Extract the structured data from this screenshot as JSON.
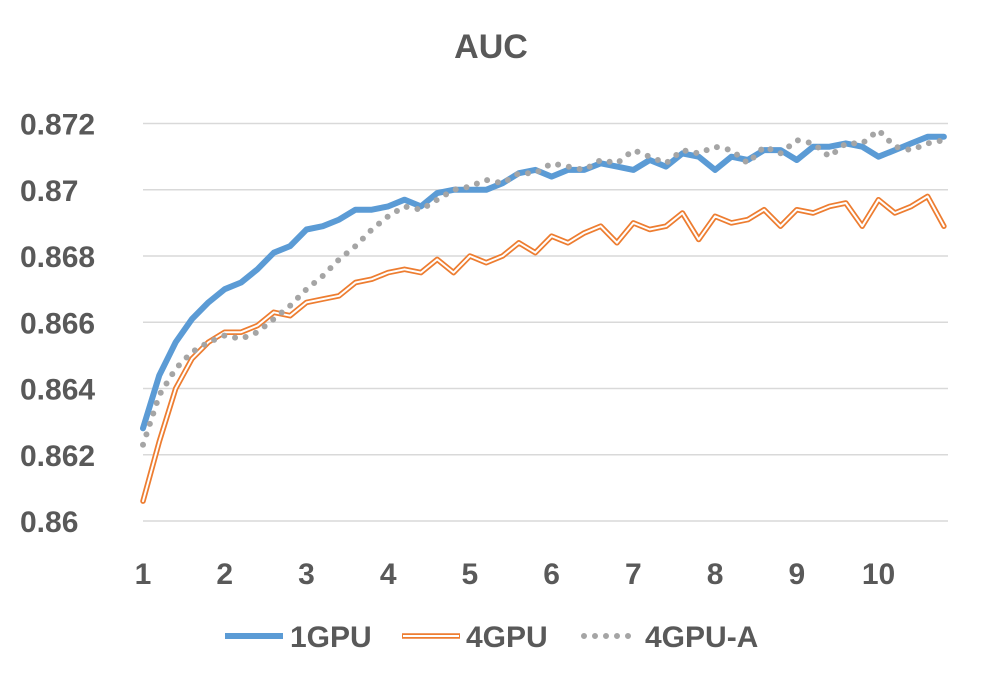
{
  "chart_data": {
    "type": "line",
    "title": "AUC",
    "xlabel": "",
    "ylabel": "",
    "x_ticks": [
      "1",
      "2",
      "3",
      "4",
      "5",
      "6",
      "7",
      "8",
      "9",
      "10"
    ],
    "x_range": [
      1,
      10.85
    ],
    "y_ticks": [
      "0.86",
      "0.862",
      "0.864",
      "0.866",
      "0.868",
      "0.87",
      "0.872"
    ],
    "ylim": [
      0.86,
      0.8725
    ],
    "grid": "horizontal",
    "legend_position": "bottom",
    "x": [
      1.0,
      1.2,
      1.4,
      1.6,
      1.8,
      2.0,
      2.2,
      2.4,
      2.6,
      2.8,
      3.0,
      3.2,
      3.4,
      3.6,
      3.8,
      4.0,
      4.2,
      4.4,
      4.6,
      4.8,
      5.0,
      5.2,
      5.4,
      5.6,
      5.8,
      6.0,
      6.2,
      6.4,
      6.6,
      6.8,
      7.0,
      7.2,
      7.4,
      7.6,
      7.8,
      8.0,
      8.2,
      8.4,
      8.6,
      8.8,
      9.0,
      9.2,
      9.4,
      9.6,
      9.8,
      10.0,
      10.2,
      10.4,
      10.6,
      10.8
    ],
    "series": [
      {
        "name": "1GPU",
        "color": "#5b9bd5",
        "style": "thick-solid",
        "values": [
          0.8628,
          0.8644,
          0.8654,
          0.8661,
          0.8666,
          0.867,
          0.8672,
          0.8676,
          0.8681,
          0.8683,
          0.8688,
          0.8689,
          0.8691,
          0.8694,
          0.8694,
          0.8695,
          0.8697,
          0.8695,
          0.8699,
          0.87,
          0.87,
          0.87,
          0.8702,
          0.8705,
          0.8706,
          0.8704,
          0.8706,
          0.8706,
          0.8708,
          0.8707,
          0.8706,
          0.8709,
          0.8707,
          0.8711,
          0.871,
          0.8706,
          0.871,
          0.8709,
          0.8712,
          0.8712,
          0.8709,
          0.8713,
          0.8713,
          0.8714,
          0.8713,
          0.871,
          0.8712,
          0.8714,
          0.8716,
          0.8716
        ]
      },
      {
        "name": "4GPU",
        "color": "#ed7d31",
        "style": "double-outline",
        "values": [
          0.8606,
          0.8624,
          0.864,
          0.8649,
          0.8654,
          0.8657,
          0.8657,
          0.8659,
          0.8663,
          0.8662,
          0.8666,
          0.8667,
          0.8668,
          0.8672,
          0.8673,
          0.8675,
          0.8676,
          0.8675,
          0.8679,
          0.8675,
          0.868,
          0.8678,
          0.868,
          0.8684,
          0.8681,
          0.8686,
          0.8684,
          0.8687,
          0.8689,
          0.8684,
          0.869,
          0.8688,
          0.8689,
          0.8693,
          0.8685,
          0.8692,
          0.869,
          0.8691,
          0.8694,
          0.8689,
          0.8694,
          0.8693,
          0.8695,
          0.8696,
          0.8689,
          0.8697,
          0.8693,
          0.8695,
          0.8698,
          0.8689
        ]
      },
      {
        "name": "4GPU-A",
        "color": "#a5a5a5",
        "style": "dotted",
        "values": [
          0.8623,
          0.8638,
          0.8646,
          0.8651,
          0.8654,
          0.8656,
          0.8655,
          0.8657,
          0.8661,
          0.8665,
          0.867,
          0.8674,
          0.8679,
          0.8683,
          0.8688,
          0.8692,
          0.8695,
          0.8694,
          0.8697,
          0.87,
          0.8701,
          0.8703,
          0.8702,
          0.8705,
          0.8705,
          0.8708,
          0.8707,
          0.8706,
          0.8709,
          0.8708,
          0.8712,
          0.871,
          0.8708,
          0.8712,
          0.8711,
          0.8713,
          0.8712,
          0.8708,
          0.8713,
          0.8711,
          0.8715,
          0.8714,
          0.871,
          0.8714,
          0.8714,
          0.8718,
          0.8713,
          0.8712,
          0.8714,
          0.8715
        ]
      }
    ]
  }
}
